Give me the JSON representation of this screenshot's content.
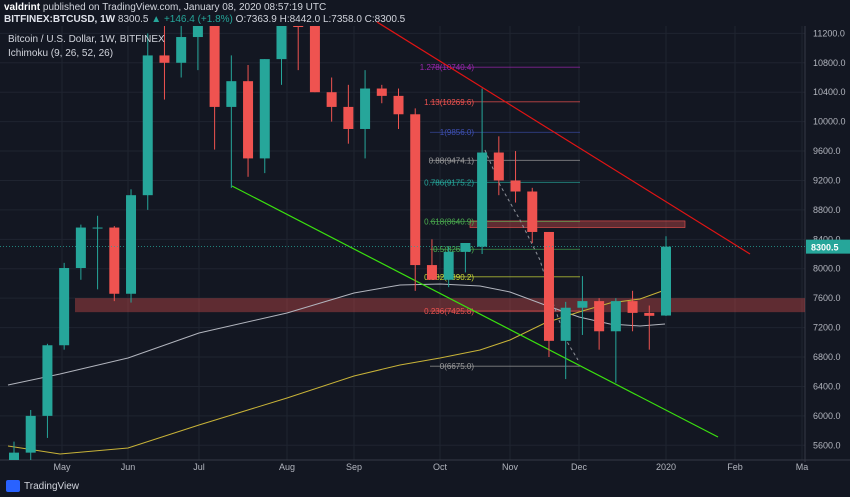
{
  "header": {
    "publisher_line": "valdrint published on TradingView.com, January 08, 2020 08:57:19 UTC",
    "publisher_name": "valdrint",
    "publisher_rest": " published on TradingView.com, January 08, 2020 08:57:19 UTC",
    "symbol": "BITFINEX:BTCUSD, 1W",
    "last": "8300.5",
    "change": "▲ +146.4 (+1.8%)",
    "ohlc": "O:7363.9 H:8442.0 L:7358.0 C:8300.5"
  },
  "legend": {
    "line1": "Bitcoin / U.S. Dollar, 1W, BITFINEX",
    "line2": "Ichimoku (9, 26, 52, 26)"
  },
  "footer": {
    "brand": "TradingView"
  },
  "colors": {
    "up": "#26a69a",
    "down": "#ef5350",
    "bg": "#131722",
    "grid": "#1f2430",
    "axis_text": "#b2b5be"
  },
  "chart_data": {
    "type": "candlestick",
    "ylim": [
      5400,
      11300
    ],
    "y_ticks": [
      5600,
      6000,
      6400,
      6800,
      7200,
      7600,
      8000,
      8400,
      8800,
      9200,
      9600,
      10000,
      10400,
      10800,
      11200
    ],
    "y_tick_labels": [
      "5600.0",
      "6000.0",
      "6400.0",
      "6800.0",
      "7200.0",
      "7600.0",
      "8000.0",
      "8400.0",
      "8800.0",
      "9200.0",
      "9600.0",
      "10000.0",
      "10400.0",
      "10800.0",
      "11200.0"
    ],
    "x_labels": [
      "May",
      "Jun",
      "Jul",
      "Aug",
      "Sep",
      "Oct",
      "Nov",
      "Dec",
      "2020",
      "Feb",
      "Ma"
    ],
    "last_price": 8300.5,
    "last_price_label": "8300.5",
    "candles": [
      {
        "o": 5200,
        "h": 5650,
        "l": 4950,
        "c": 5500
      },
      {
        "o": 5500,
        "h": 6080,
        "l": 5400,
        "c": 6000
      },
      {
        "o": 6000,
        "h": 6980,
        "l": 5700,
        "c": 6960
      },
      {
        "o": 6960,
        "h": 8080,
        "l": 6900,
        "c": 8010
      },
      {
        "o": 8010,
        "h": 8600,
        "l": 7850,
        "c": 8560
      },
      {
        "o": 8560,
        "h": 8720,
        "l": 7720,
        "c": 8560
      },
      {
        "o": 8560,
        "h": 8580,
        "l": 7560,
        "c": 7660
      },
      {
        "o": 7660,
        "h": 9080,
        "l": 7540,
        "c": 9000
      },
      {
        "o": 9000,
        "h": 11200,
        "l": 8800,
        "c": 10900
      },
      {
        "o": 10900,
        "h": 11450,
        "l": 10300,
        "c": 10800
      },
      {
        "o": 10800,
        "h": 11550,
        "l": 10600,
        "c": 11150
      },
      {
        "o": 11150,
        "h": 13000,
        "l": 10700,
        "c": 12300
      },
      {
        "o": 12300,
        "h": 13200,
        "l": 9620,
        "c": 10200
      },
      {
        "o": 10200,
        "h": 10900,
        "l": 9100,
        "c": 10550
      },
      {
        "o": 10550,
        "h": 10770,
        "l": 9250,
        "c": 9500
      },
      {
        "o": 9500,
        "h": 10850,
        "l": 9300,
        "c": 10850
      },
      {
        "o": 10850,
        "h": 12300,
        "l": 10500,
        "c": 11550
      },
      {
        "o": 11550,
        "h": 12300,
        "l": 10700,
        "c": 11450
      },
      {
        "o": 11450,
        "h": 11800,
        "l": 10400,
        "c": 10400
      },
      {
        "o": 10400,
        "h": 10600,
        "l": 10000,
        "c": 10200
      },
      {
        "o": 10200,
        "h": 10500,
        "l": 9700,
        "c": 9900
      },
      {
        "o": 9900,
        "h": 10700,
        "l": 9500,
        "c": 10450
      },
      {
        "o": 10450,
        "h": 10500,
        "l": 10250,
        "c": 10350
      },
      {
        "o": 10350,
        "h": 10450,
        "l": 9900,
        "c": 10100
      },
      {
        "o": 10100,
        "h": 10180,
        "l": 7700,
        "c": 8050
      },
      {
        "o": 8050,
        "h": 8400,
        "l": 7880,
        "c": 7850
      },
      {
        "o": 7850,
        "h": 8300,
        "l": 7750,
        "c": 8230
      },
      {
        "o": 8230,
        "h": 8350,
        "l": 7950,
        "c": 8350
      },
      {
        "o": 8300,
        "h": 10450,
        "l": 8200,
        "c": 9580
      },
      {
        "o": 9580,
        "h": 9800,
        "l": 9000,
        "c": 9200
      },
      {
        "o": 9200,
        "h": 9600,
        "l": 8900,
        "c": 9050
      },
      {
        "o": 9050,
        "h": 9100,
        "l": 8350,
        "c": 8500
      },
      {
        "o": 8500,
        "h": 8500,
        "l": 6800,
        "c": 7020
      },
      {
        "o": 7020,
        "h": 7550,
        "l": 6500,
        "c": 7470
      },
      {
        "o": 7470,
        "h": 7900,
        "l": 7100,
        "c": 7560
      },
      {
        "o": 7560,
        "h": 7600,
        "l": 6900,
        "c": 7150
      },
      {
        "o": 7150,
        "h": 7600,
        "l": 6450,
        "c": 7560
      },
      {
        "o": 7560,
        "h": 7700,
        "l": 7150,
        "c": 7400
      },
      {
        "o": 7400,
        "h": 7500,
        "l": 6900,
        "c": 7360
      },
      {
        "o": 7363.9,
        "h": 8442,
        "l": 7358,
        "c": 8300.5
      }
    ],
    "fib_levels": [
      {
        "label": "1.278(10740.4)",
        "value": 10740.4,
        "color": "#9c27b0"
      },
      {
        "label": "1.13(10269.6)",
        "value": 10269.6,
        "color": "#ef5350"
      },
      {
        "label": "1(9856.0)",
        "value": 9856,
        "color": "#3f51b5"
      },
      {
        "label": "0.88(9474.1)",
        "value": 9474.1,
        "color": "#9e9e9e"
      },
      {
        "label": "0.786(9175.2)",
        "value": 9175.2,
        "color": "#26a69a"
      },
      {
        "label": "0.618(8640.9)",
        "value": 8640.9,
        "color": "#4caf50"
      },
      {
        "label": "0.5(8265.3)",
        "value": 8265.3,
        "color": "#4caf50"
      },
      {
        "label": "0.382(7890.2)",
        "value": 7890.2,
        "color": "#cddc39"
      },
      {
        "label": "0.236(7425.8)",
        "value": 7425.8,
        "color": "#ef5350"
      },
      {
        "label": "0(6675.0)",
        "value": 6675,
        "color": "#9e9e9e"
      }
    ]
  }
}
